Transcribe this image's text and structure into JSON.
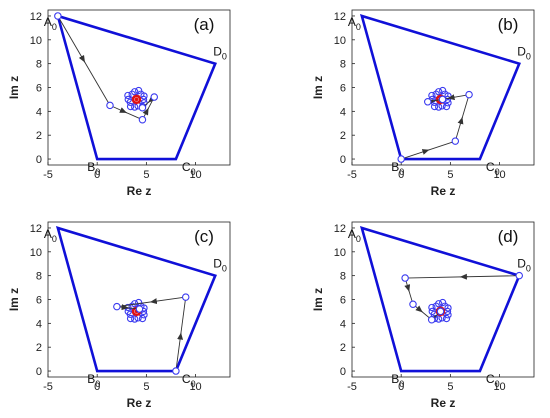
{
  "chart_data": [
    {
      "type": "line",
      "panel_label": "(a)",
      "xlabel": "Re z",
      "ylabel": "Im z",
      "xlim": [
        -5,
        13.5
      ],
      "ylim": [
        -0.5,
        12.5
      ],
      "xticks": [
        "-5",
        "0",
        "5",
        "10"
      ],
      "yticks": [
        "0",
        "2",
        "4",
        "6",
        "8",
        "10",
        "12"
      ],
      "polygon": [
        {
          "name": "A",
          "sub": "0",
          "x": -4,
          "y": 12
        },
        {
          "name": "B",
          "sub": "0",
          "x": 0,
          "y": 0
        },
        {
          "name": "C",
          "sub": "0",
          "x": 8,
          "y": 0
        },
        {
          "name": "D",
          "sub": "0",
          "x": 12,
          "y": 8
        }
      ],
      "trajectory": [
        {
          "x": -4,
          "y": 12
        },
        {
          "x": 1.3,
          "y": 4.5
        },
        {
          "x": 4.6,
          "y": 3.3
        },
        {
          "x": 5.8,
          "y": 5.2
        },
        {
          "x": 4.6,
          "y": 4.3
        }
      ],
      "cluster": {
        "x": 4.0,
        "y": 5.0
      },
      "colors": {
        "polygon": "#1010d8",
        "circles": "#3a3af0",
        "center": "#e01010",
        "arrows": "#333333"
      }
    },
    {
      "type": "line",
      "panel_label": "(b)",
      "xlabel": "Re z",
      "ylabel": "Im z",
      "xlim": [
        -5,
        13.5
      ],
      "ylim": [
        -0.5,
        12.5
      ],
      "xticks": [
        "-5",
        "0",
        "5",
        "10"
      ],
      "yticks": [
        "0",
        "2",
        "4",
        "6",
        "8",
        "10",
        "12"
      ],
      "polygon": [
        {
          "name": "A",
          "sub": "0",
          "x": -4,
          "y": 12
        },
        {
          "name": "B",
          "sub": "0",
          "x": 0,
          "y": 0
        },
        {
          "name": "C",
          "sub": "0",
          "x": 8,
          "y": 0
        },
        {
          "name": "D",
          "sub": "0",
          "x": 12,
          "y": 8
        }
      ],
      "trajectory": [
        {
          "x": 0,
          "y": 0
        },
        {
          "x": 5.5,
          "y": 1.5
        },
        {
          "x": 6.9,
          "y": 5.4
        },
        {
          "x": 2.7,
          "y": 4.8
        },
        {
          "x": 4.2,
          "y": 5.0
        }
      ],
      "cluster": {
        "x": 4.0,
        "y": 5.0
      },
      "colors": {
        "polygon": "#1010d8",
        "circles": "#3a3af0",
        "center": "#e01010",
        "arrows": "#333333"
      }
    },
    {
      "type": "line",
      "panel_label": "(c)",
      "xlabel": "Re z",
      "ylabel": "Im z",
      "xlim": [
        -5,
        13.5
      ],
      "ylim": [
        -0.5,
        12.5
      ],
      "xticks": [
        "-5",
        "0",
        "5",
        "10"
      ],
      "yticks": [
        "0",
        "2",
        "4",
        "6",
        "8",
        "10",
        "12"
      ],
      "polygon": [
        {
          "name": "A",
          "sub": "0",
          "x": -4,
          "y": 12
        },
        {
          "name": "B",
          "sub": "0",
          "x": 0,
          "y": 0
        },
        {
          "name": "C",
          "sub": "0",
          "x": 8,
          "y": 0
        },
        {
          "name": "D",
          "sub": "0",
          "x": 12,
          "y": 8
        }
      ],
      "trajectory": [
        {
          "x": 8,
          "y": 0
        },
        {
          "x": 9.0,
          "y": 6.2
        },
        {
          "x": 2.0,
          "y": 5.4
        },
        {
          "x": 4.3,
          "y": 5.2
        }
      ],
      "cluster": {
        "x": 4.0,
        "y": 5.0
      },
      "colors": {
        "polygon": "#1010d8",
        "circles": "#3a3af0",
        "center": "#e01010",
        "arrows": "#333333"
      }
    },
    {
      "type": "line",
      "panel_label": "(d)",
      "xlabel": "Re z",
      "ylabel": "Im z",
      "xlim": [
        -5,
        13.5
      ],
      "ylim": [
        -0.5,
        12.5
      ],
      "xticks": [
        "-5",
        "0",
        "5",
        "10"
      ],
      "yticks": [
        "0",
        "2",
        "4",
        "6",
        "8",
        "10",
        "12"
      ],
      "polygon": [
        {
          "name": "A",
          "sub": "0",
          "x": -4,
          "y": 12
        },
        {
          "name": "B",
          "sub": "0",
          "x": 0,
          "y": 0
        },
        {
          "name": "C",
          "sub": "0",
          "x": 8,
          "y": 0
        },
        {
          "name": "D",
          "sub": "0",
          "x": 12,
          "y": 8
        }
      ],
      "trajectory": [
        {
          "x": 12,
          "y": 8
        },
        {
          "x": 0.4,
          "y": 7.8
        },
        {
          "x": 1.2,
          "y": 5.6
        },
        {
          "x": 3.1,
          "y": 4.3
        },
        {
          "x": 4.0,
          "y": 5.0
        }
      ],
      "cluster": {
        "x": 4.0,
        "y": 5.0
      },
      "colors": {
        "polygon": "#1010d8",
        "circles": "#3a3af0",
        "center": "#e01010",
        "arrows": "#333333"
      }
    }
  ]
}
